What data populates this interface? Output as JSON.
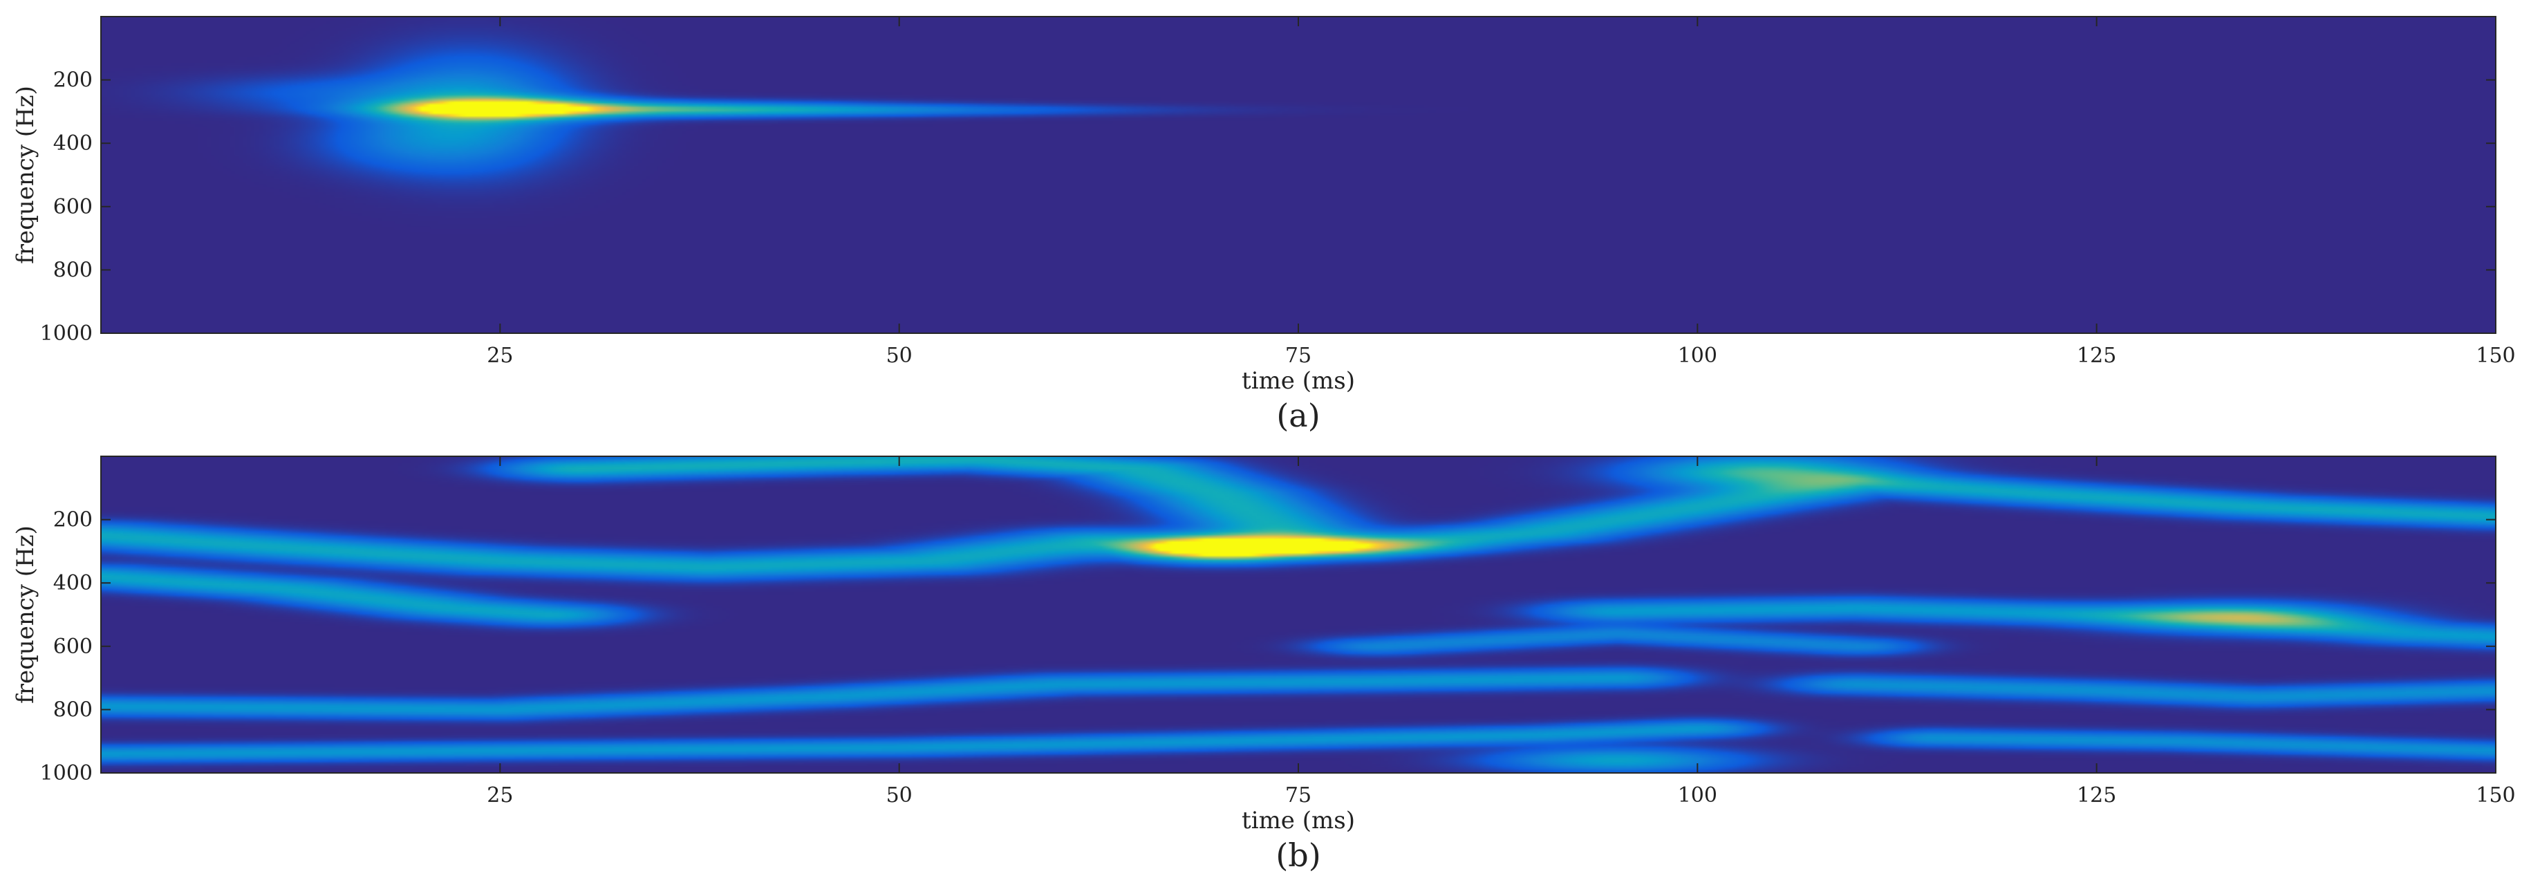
{
  "chart_data": [
    {
      "type": "heatmap",
      "panel_label": "(a)",
      "xlabel": "time (ms)",
      "ylabel": "frequency (Hz)",
      "xlim": [
        0,
        150
      ],
      "ylim": [
        1000,
        0
      ],
      "y_axis_direction": "top-to-bottom",
      "x_ticks": [
        25,
        50,
        75,
        100,
        125,
        150
      ],
      "y_ticks": [
        200,
        400,
        600,
        800,
        1000
      ],
      "grid": false,
      "colormap": "parula",
      "background_color": "#352a87",
      "features": [
        {
          "type": "blob",
          "t": 25,
          "f": 290,
          "dt": 4.5,
          "df": 22,
          "intensity": 1.0
        },
        {
          "type": "blob",
          "t": 34,
          "f": 292,
          "dt": 9,
          "df": 16,
          "intensity": 0.4
        },
        {
          "type": "blob",
          "t": 45,
          "f": 295,
          "dt": 12,
          "df": 12,
          "intensity": 0.22
        },
        {
          "type": "blob",
          "t": 23,
          "f": 300,
          "dt": 4,
          "df": 110,
          "intensity": 0.35
        },
        {
          "type": "blob",
          "t": 15,
          "f": 240,
          "dt": 6,
          "df": 35,
          "intensity": 0.12
        },
        {
          "type": "blob",
          "t": 19,
          "f": 400,
          "dt": 4,
          "df": 60,
          "intensity": 0.12
        }
      ]
    },
    {
      "type": "heatmap",
      "panel_label": "(b)",
      "xlabel": "time (ms)",
      "ylabel": "frequency (Hz)",
      "xlim": [
        0,
        150
      ],
      "ylim": [
        1000,
        0
      ],
      "y_axis_direction": "top-to-bottom",
      "x_ticks": [
        25,
        50,
        75,
        100,
        125,
        150
      ],
      "y_ticks": [
        200,
        400,
        600,
        800,
        1000
      ],
      "grid": false,
      "colormap": "parula",
      "background_color": "#352a87",
      "features": [
        {
          "type": "blob",
          "t": 70,
          "f": 290,
          "dt": 3.5,
          "df": 25,
          "intensity": 1.0
        },
        {
          "type": "blob",
          "t": 76,
          "f": 285,
          "dt": 5,
          "df": 18,
          "intensity": 0.55
        },
        {
          "type": "blob",
          "t": 104,
          "f": 50,
          "dt": 5,
          "df": 35,
          "intensity": 0.55
        },
        {
          "type": "blob",
          "t": 134,
          "f": 510,
          "dt": 5,
          "df": 30,
          "intensity": 0.45
        },
        {
          "type": "blob",
          "t": 95,
          "f": 960,
          "dt": 5,
          "df": 25,
          "intensity": 0.38
        },
        {
          "type": "ridge",
          "points": [
            [
              0,
              250
            ],
            [
              12,
              290
            ],
            [
              25,
              330
            ],
            [
              38,
              350
            ],
            [
              52,
              330
            ],
            [
              62,
              270
            ],
            [
              70,
              290
            ]
          ],
          "width": 25,
          "intensity": 0.42
        },
        {
          "type": "ridge",
          "points": [
            [
              0,
              380
            ],
            [
              12,
              420
            ],
            [
              22,
              480
            ],
            [
              28,
              500
            ]
          ],
          "width": 22,
          "intensity": 0.4
        },
        {
          "type": "ridge",
          "points": [
            [
              30,
              40
            ],
            [
              45,
              20
            ],
            [
              55,
              10
            ],
            [
              65,
              40
            ],
            [
              70,
              120
            ],
            [
              75,
              260
            ]
          ],
          "width": 22,
          "intensity": 0.45
        },
        {
          "type": "ridge",
          "points": [
            [
              78,
              290
            ],
            [
              90,
              240
            ],
            [
              100,
              160
            ],
            [
              110,
              80
            ],
            [
              122,
              120
            ],
            [
              135,
              160
            ],
            [
              150,
              190
            ]
          ],
          "width": 22,
          "intensity": 0.42
        },
        {
          "type": "ridge",
          "points": [
            [
              0,
              790
            ],
            [
              25,
              800
            ],
            [
              45,
              760
            ],
            [
              60,
              720
            ],
            [
              80,
              710
            ],
            [
              95,
              700
            ]
          ],
          "width": 20,
          "intensity": 0.33
        },
        {
          "type": "ridge",
          "points": [
            [
              0,
              940
            ],
            [
              25,
              930
            ],
            [
              50,
              920
            ],
            [
              70,
              900
            ],
            [
              90,
              880
            ],
            [
              100,
              860
            ]
          ],
          "width": 18,
          "intensity": 0.33
        },
        {
          "type": "ridge",
          "points": [
            [
              95,
              490
            ],
            [
              110,
              480
            ],
            [
              125,
              500
            ],
            [
              134,
              510
            ],
            [
              145,
              560
            ],
            [
              150,
              570
            ]
          ],
          "width": 22,
          "intensity": 0.35
        },
        {
          "type": "ridge",
          "points": [
            [
              110,
              720
            ],
            [
              125,
              740
            ],
            [
              135,
              760
            ],
            [
              150,
              740
            ]
          ],
          "width": 20,
          "intensity": 0.3
        },
        {
          "type": "ridge",
          "points": [
            [
              115,
              890
            ],
            [
              130,
              900
            ],
            [
              150,
              930
            ]
          ],
          "width": 18,
          "intensity": 0.3
        },
        {
          "type": "ridge",
          "points": [
            [
              80,
              600
            ],
            [
              95,
              560
            ],
            [
              110,
              600
            ]
          ],
          "width": 18,
          "intensity": 0.25
        }
      ]
    }
  ]
}
